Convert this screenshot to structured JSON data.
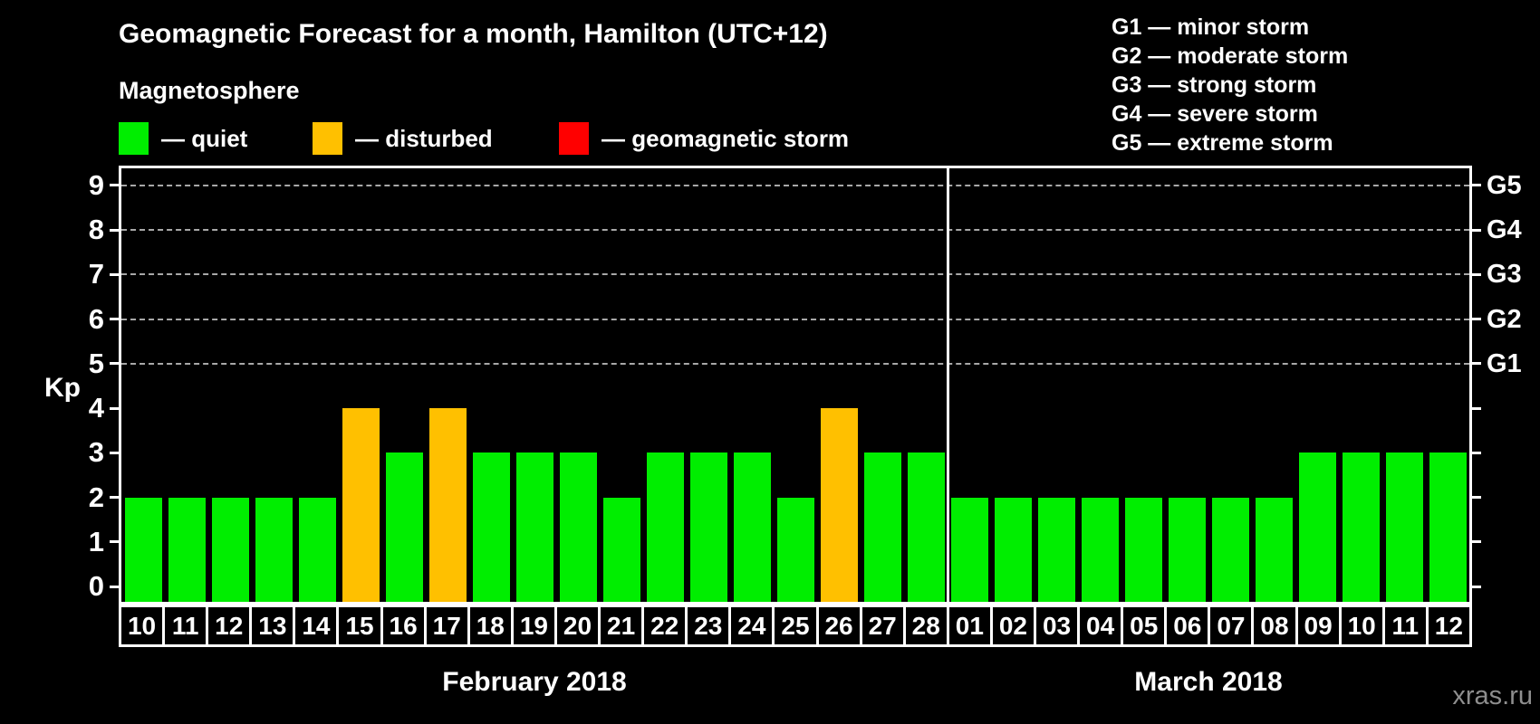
{
  "title": "Geomagnetic Forecast for a month, Hamilton (UTC+12)",
  "subtitle": "Magnetosphere",
  "legend": {
    "items": [
      {
        "key": "quiet",
        "label": "— quiet",
        "color": "#00ee00"
      },
      {
        "key": "disturbed",
        "label": "— disturbed",
        "color": "#ffc000"
      },
      {
        "key": "storm",
        "label": "— geomagnetic storm",
        "color": "#ff0000"
      }
    ]
  },
  "g_scale_legend": [
    "G1 — minor storm",
    "G2 — moderate storm",
    "G3 — strong storm",
    "G4 — severe storm",
    "G5 — extreme storm"
  ],
  "watermark": "xras.ru",
  "chart_data": {
    "type": "bar",
    "title": "Geomagnetic Forecast for a month, Hamilton (UTC+12)",
    "ylabel": "Kp",
    "ylim": [
      -0.34,
      9.38
    ],
    "yticks": [
      0,
      1,
      2,
      3,
      4,
      5,
      6,
      7,
      8,
      9
    ],
    "gridline_values": [
      5,
      6,
      7,
      8,
      9
    ],
    "grid": "dashed-horizontal",
    "legend_position": "top",
    "right_axis": [
      {
        "value": 5,
        "label": "G1"
      },
      {
        "value": 6,
        "label": "G2"
      },
      {
        "value": 7,
        "label": "G3"
      },
      {
        "value": 8,
        "label": "G4"
      },
      {
        "value": 9,
        "label": "G5"
      }
    ],
    "groups": [
      {
        "label": "February 2018",
        "bars": [
          {
            "day": "10",
            "kp": 2,
            "status": "quiet"
          },
          {
            "day": "11",
            "kp": 2,
            "status": "quiet"
          },
          {
            "day": "12",
            "kp": 2,
            "status": "quiet"
          },
          {
            "day": "13",
            "kp": 2,
            "status": "quiet"
          },
          {
            "day": "14",
            "kp": 2,
            "status": "quiet"
          },
          {
            "day": "15",
            "kp": 4,
            "status": "disturbed"
          },
          {
            "day": "16",
            "kp": 3,
            "status": "quiet"
          },
          {
            "day": "17",
            "kp": 4,
            "status": "disturbed"
          },
          {
            "day": "18",
            "kp": 3,
            "status": "quiet"
          },
          {
            "day": "19",
            "kp": 3,
            "status": "quiet"
          },
          {
            "day": "20",
            "kp": 3,
            "status": "quiet"
          },
          {
            "day": "21",
            "kp": 2,
            "status": "quiet"
          },
          {
            "day": "22",
            "kp": 3,
            "status": "quiet"
          },
          {
            "day": "23",
            "kp": 3,
            "status": "quiet"
          },
          {
            "day": "24",
            "kp": 3,
            "status": "quiet"
          },
          {
            "day": "25",
            "kp": 2,
            "status": "quiet"
          },
          {
            "day": "26",
            "kp": 4,
            "status": "disturbed"
          },
          {
            "day": "27",
            "kp": 3,
            "status": "quiet"
          },
          {
            "day": "28",
            "kp": 3,
            "status": "quiet"
          }
        ]
      },
      {
        "label": "March 2018",
        "bars": [
          {
            "day": "01",
            "kp": 2,
            "status": "quiet"
          },
          {
            "day": "02",
            "kp": 2,
            "status": "quiet"
          },
          {
            "day": "03",
            "kp": 2,
            "status": "quiet"
          },
          {
            "day": "04",
            "kp": 2,
            "status": "quiet"
          },
          {
            "day": "05",
            "kp": 2,
            "status": "quiet"
          },
          {
            "day": "06",
            "kp": 2,
            "status": "quiet"
          },
          {
            "day": "07",
            "kp": 2,
            "status": "quiet"
          },
          {
            "day": "08",
            "kp": 2,
            "status": "quiet"
          },
          {
            "day": "09",
            "kp": 3,
            "status": "quiet"
          },
          {
            "day": "10",
            "kp": 3,
            "status": "quiet"
          },
          {
            "day": "11",
            "kp": 3,
            "status": "quiet"
          },
          {
            "day": "12",
            "kp": 3,
            "status": "quiet"
          }
        ]
      }
    ]
  }
}
